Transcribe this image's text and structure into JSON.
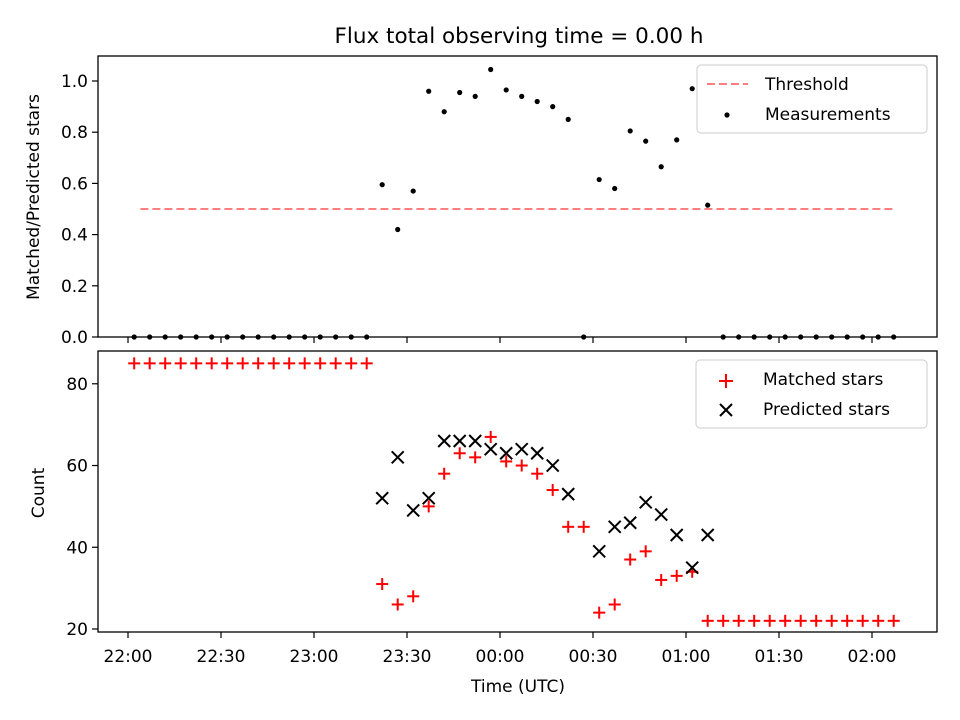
{
  "chart_data": [
    {
      "type": "scatter",
      "title": "Flux total observing time = 0.00 h",
      "ylabel": "Matched/Predicted stars",
      "xlabel": "",
      "x_tick_labels": [
        "22:00",
        "22:30",
        "23:00",
        "23:30",
        "00:00",
        "00:30",
        "01:00",
        "01:30",
        "02:00"
      ],
      "y_ticks": [
        "0.0",
        "0.2",
        "0.4",
        "0.6",
        "0.8",
        "1.0"
      ],
      "ylim": [
        0,
        1.1
      ],
      "grid": false,
      "legend": "top-right",
      "threshold": {
        "name": "Threshold",
        "value": 0.5,
        "x_start": "22:04",
        "x_end": "02:07",
        "color": "#ff7f7f",
        "style": "dashed"
      },
      "series": [
        {
          "name": "Measurements",
          "color": "#000000",
          "marker": "dot",
          "points": [
            {
              "x": "22:02",
              "y": 0
            },
            {
              "x": "22:07",
              "y": 0
            },
            {
              "x": "22:12",
              "y": 0
            },
            {
              "x": "22:17",
              "y": 0
            },
            {
              "x": "22:22",
              "y": 0
            },
            {
              "x": "22:27",
              "y": 0
            },
            {
              "x": "22:32",
              "y": 0
            },
            {
              "x": "22:37",
              "y": 0
            },
            {
              "x": "22:42",
              "y": 0
            },
            {
              "x": "22:47",
              "y": 0
            },
            {
              "x": "22:52",
              "y": 0
            },
            {
              "x": "22:57",
              "y": 0
            },
            {
              "x": "23:02",
              "y": 0
            },
            {
              "x": "23:07",
              "y": 0
            },
            {
              "x": "23:12",
              "y": 0
            },
            {
              "x": "23:17",
              "y": 0
            },
            {
              "x": "23:22",
              "y": 0.595
            },
            {
              "x": "23:27",
              "y": 0.42
            },
            {
              "x": "23:32",
              "y": 0.57
            },
            {
              "x": "23:37",
              "y": 0.96
            },
            {
              "x": "23:42",
              "y": 0.88
            },
            {
              "x": "23:47",
              "y": 0.955
            },
            {
              "x": "23:52",
              "y": 0.94
            },
            {
              "x": "23:57",
              "y": 1.045
            },
            {
              "x": "00:02",
              "y": 0.965
            },
            {
              "x": "00:07",
              "y": 0.94
            },
            {
              "x": "00:12",
              "y": 0.92
            },
            {
              "x": "00:17",
              "y": 0.9
            },
            {
              "x": "00:22",
              "y": 0.85
            },
            {
              "x": "00:27",
              "y": 0
            },
            {
              "x": "00:32",
              "y": 0.615
            },
            {
              "x": "00:37",
              "y": 0.58
            },
            {
              "x": "00:42",
              "y": 0.805
            },
            {
              "x": "00:47",
              "y": 0.765
            },
            {
              "x": "00:52",
              "y": 0.665
            },
            {
              "x": "00:57",
              "y": 0.77
            },
            {
              "x": "01:02",
              "y": 0.97
            },
            {
              "x": "01:07",
              "y": 0.515
            },
            {
              "x": "01:12",
              "y": 0
            },
            {
              "x": "01:17",
              "y": 0
            },
            {
              "x": "01:22",
              "y": 0
            },
            {
              "x": "01:27",
              "y": 0
            },
            {
              "x": "01:32",
              "y": 0
            },
            {
              "x": "01:37",
              "y": 0
            },
            {
              "x": "01:42",
              "y": 0
            },
            {
              "x": "01:47",
              "y": 0
            },
            {
              "x": "01:52",
              "y": 0
            },
            {
              "x": "01:57",
              "y": 0
            },
            {
              "x": "02:02",
              "y": 0
            },
            {
              "x": "02:07",
              "y": 0
            }
          ]
        }
      ]
    },
    {
      "type": "scatter",
      "title": "",
      "ylabel": "Count",
      "xlabel": "Time (UTC)",
      "x_tick_labels": [
        "22:00",
        "22:30",
        "23:00",
        "23:30",
        "00:00",
        "00:30",
        "01:00",
        "01:30",
        "02:00"
      ],
      "y_ticks": [
        "20",
        "40",
        "60",
        "80"
      ],
      "ylim": [
        19,
        88
      ],
      "grid": false,
      "legend": "top-right",
      "series": [
        {
          "name": "Matched stars",
          "color": "#ff0000",
          "marker": "plus",
          "points": [
            {
              "x": "22:02",
              "y": 85
            },
            {
              "x": "22:07",
              "y": 85
            },
            {
              "x": "22:12",
              "y": 85
            },
            {
              "x": "22:17",
              "y": 85
            },
            {
              "x": "22:22",
              "y": 85
            },
            {
              "x": "22:27",
              "y": 85
            },
            {
              "x": "22:32",
              "y": 85
            },
            {
              "x": "22:37",
              "y": 85
            },
            {
              "x": "22:42",
              "y": 85
            },
            {
              "x": "22:47",
              "y": 85
            },
            {
              "x": "22:52",
              "y": 85
            },
            {
              "x": "22:57",
              "y": 85
            },
            {
              "x": "23:02",
              "y": 85
            },
            {
              "x": "23:07",
              "y": 85
            },
            {
              "x": "23:12",
              "y": 85
            },
            {
              "x": "23:17",
              "y": 85
            },
            {
              "x": "23:22",
              "y": 31
            },
            {
              "x": "23:27",
              "y": 26
            },
            {
              "x": "23:32",
              "y": 28
            },
            {
              "x": "23:37",
              "y": 50
            },
            {
              "x": "23:42",
              "y": 58
            },
            {
              "x": "23:47",
              "y": 63
            },
            {
              "x": "23:52",
              "y": 62
            },
            {
              "x": "23:57",
              "y": 67
            },
            {
              "x": "00:02",
              "y": 61
            },
            {
              "x": "00:07",
              "y": 60
            },
            {
              "x": "00:12",
              "y": 58
            },
            {
              "x": "00:17",
              "y": 54
            },
            {
              "x": "00:22",
              "y": 45
            },
            {
              "x": "00:27",
              "y": 45
            },
            {
              "x": "00:32",
              "y": 24
            },
            {
              "x": "00:37",
              "y": 26
            },
            {
              "x": "00:42",
              "y": 37
            },
            {
              "x": "00:47",
              "y": 39
            },
            {
              "x": "00:52",
              "y": 32
            },
            {
              "x": "00:57",
              "y": 33
            },
            {
              "x": "01:02",
              "y": 34
            },
            {
              "x": "01:07",
              "y": 22
            },
            {
              "x": "01:12",
              "y": 22
            },
            {
              "x": "01:17",
              "y": 22
            },
            {
              "x": "01:22",
              "y": 22
            },
            {
              "x": "01:27",
              "y": 22
            },
            {
              "x": "01:32",
              "y": 22
            },
            {
              "x": "01:37",
              "y": 22
            },
            {
              "x": "01:42",
              "y": 22
            },
            {
              "x": "01:47",
              "y": 22
            },
            {
              "x": "01:52",
              "y": 22
            },
            {
              "x": "01:57",
              "y": 22
            },
            {
              "x": "02:02",
              "y": 22
            },
            {
              "x": "02:07",
              "y": 22
            }
          ]
        },
        {
          "name": "Predicted stars",
          "color": "#000000",
          "marker": "x",
          "points": [
            {
              "x": "23:22",
              "y": 52
            },
            {
              "x": "23:27",
              "y": 62
            },
            {
              "x": "23:32",
              "y": 49
            },
            {
              "x": "23:37",
              "y": 52
            },
            {
              "x": "23:42",
              "y": 66
            },
            {
              "x": "23:47",
              "y": 66
            },
            {
              "x": "23:52",
              "y": 66
            },
            {
              "x": "23:57",
              "y": 64
            },
            {
              "x": "00:02",
              "y": 63
            },
            {
              "x": "00:07",
              "y": 64
            },
            {
              "x": "00:12",
              "y": 63
            },
            {
              "x": "00:17",
              "y": 60
            },
            {
              "x": "00:22",
              "y": 53
            },
            {
              "x": "00:32",
              "y": 39
            },
            {
              "x": "00:37",
              "y": 45
            },
            {
              "x": "00:42",
              "y": 46
            },
            {
              "x": "00:47",
              "y": 51
            },
            {
              "x": "00:52",
              "y": 48
            },
            {
              "x": "00:57",
              "y": 43
            },
            {
              "x": "01:02",
              "y": 35
            },
            {
              "x": "01:07",
              "y": 43
            }
          ]
        }
      ]
    }
  ]
}
